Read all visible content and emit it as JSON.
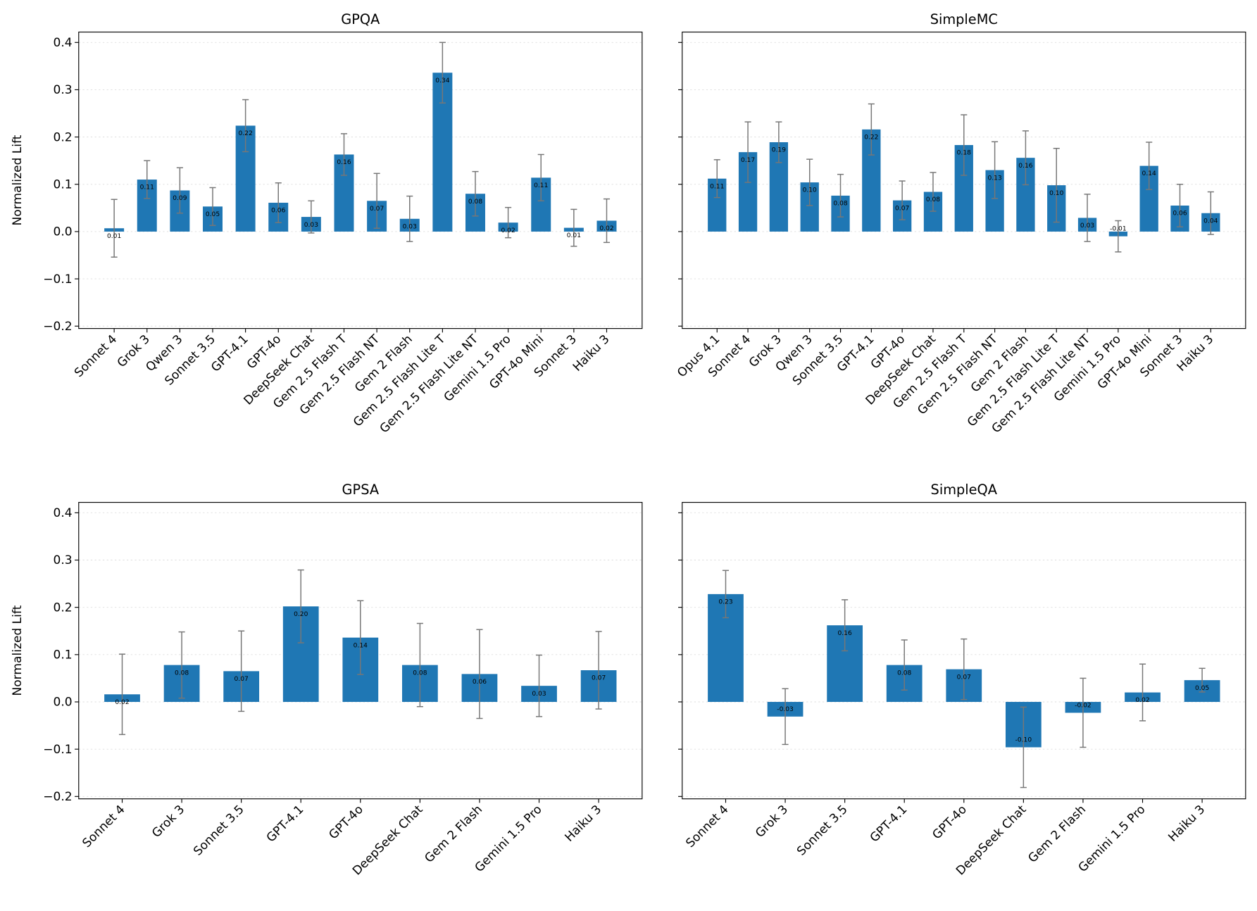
{
  "chart_data": [
    {
      "type": "bar",
      "title": "GPQA",
      "ylabel": "Normalized Lift",
      "color": "#1f77b4",
      "grid": true,
      "categories": [
        "Sonnet 4",
        "Grok 3",
        "Qwen 3",
        "Sonnet 3.5",
        "GPT-4.1",
        "GPT-4o",
        "DeepSeek Chat",
        "Gem 2.5 Flash T",
        "Gem 2.5 Flash NT",
        "Gem 2 Flash",
        "Gem 2.5 Flash Lite T",
        "Gem 2.5 Flash Lite NT",
        "Gemini 1.5 Pro",
        "GPT-4o Mini",
        "Sonnet 3",
        "Haiku 3"
      ],
      "values": [
        0.007,
        0.11,
        0.087,
        0.053,
        0.224,
        0.061,
        0.031,
        0.163,
        0.065,
        0.027,
        0.336,
        0.08,
        0.019,
        0.114,
        0.008,
        0.023
      ],
      "errors": [
        0.061,
        0.04,
        0.048,
        0.04,
        0.055,
        0.042,
        0.034,
        0.044,
        0.058,
        0.048,
        0.064,
        0.047,
        0.032,
        0.049,
        0.039,
        0.046
      ],
      "value_labels": [
        "0.01",
        "0.11",
        "0.09",
        "0.05",
        "0.22",
        "0.06",
        "0.03",
        "0.16",
        "0.07",
        "0.03",
        "0.34",
        "0.08",
        "0.02",
        "0.11",
        "0.01",
        "0.02"
      ],
      "ylim": [
        -0.205,
        0.422
      ],
      "yticks": [
        {
          "value": -0.2,
          "label": "−0.2"
        },
        {
          "value": -0.1,
          "label": "−0.1"
        },
        {
          "value": 0,
          "label": "0.0"
        },
        0.1,
        0.2,
        0.3,
        0.4
      ]
    },
    {
      "type": "bar",
      "title": "SimpleMC",
      "color": "#1f77b4",
      "grid": true,
      "categories": [
        "Opus 4.1",
        "Sonnet 4",
        "Grok 3",
        "Qwen 3",
        "Sonnet 3.5",
        "GPT-4.1",
        "GPT-4o",
        "DeepSeek Chat",
        "Gem 2.5 Flash T",
        "Gem 2.5 Flash NT",
        "Gem 2 Flash",
        "Gem 2.5 Flash Lite T",
        "Gem 2.5 Flash Lite NT",
        "Gemini 1.5 Pro",
        "GPT-4o Mini",
        "Sonnet 3",
        "Haiku 3"
      ],
      "values": [
        0.112,
        0.168,
        0.189,
        0.104,
        0.076,
        0.216,
        0.066,
        0.084,
        0.183,
        0.13,
        0.156,
        0.098,
        0.029,
        -0.01,
        0.139,
        0.055,
        0.039
      ],
      "errors": [
        0.04,
        0.064,
        0.043,
        0.049,
        0.045,
        0.054,
        0.041,
        0.041,
        0.064,
        0.06,
        0.057,
        0.078,
        0.05,
        0.033,
        0.05,
        0.045,
        0.045
      ],
      "value_labels": [
        "0.11",
        "0.17",
        "0.19",
        "0.10",
        "0.08",
        "0.22",
        "0.07",
        "0.08",
        "0.18",
        "0.13",
        "0.16",
        "0.10",
        "0.03",
        "-0.01",
        "0.14",
        "0.06",
        "0.04"
      ],
      "ylim": [
        -0.205,
        0.422
      ],
      "yticks": [
        -0.2,
        -0.1,
        0,
        0.1,
        0.2,
        0.3,
        0.4
      ]
    },
    {
      "type": "bar",
      "title": "GPSA",
      "ylabel": "Normalized Lift",
      "color": "#1f77b4",
      "grid": true,
      "categories": [
        "Sonnet 4",
        "Grok 3",
        "Sonnet 3.5",
        "GPT-4.1",
        "GPT-4o",
        "DeepSeek Chat",
        "Gem 2 Flash",
        "Gemini 1.5 Pro",
        "Haiku 3"
      ],
      "values": [
        0.016,
        0.078,
        0.065,
        0.202,
        0.136,
        0.078,
        0.059,
        0.034,
        0.067
      ],
      "errors": [
        0.085,
        0.07,
        0.085,
        0.077,
        0.078,
        0.088,
        0.094,
        0.065,
        0.082
      ],
      "value_labels": [
        "0.02",
        "0.08",
        "0.07",
        "0.20",
        "0.14",
        "0.08",
        "0.06",
        "0.03",
        "0.07"
      ],
      "ylim": [
        -0.205,
        0.422
      ],
      "yticks": [
        {
          "value": -0.2,
          "label": "−0.2"
        },
        {
          "value": -0.1,
          "label": "−0.1"
        },
        {
          "value": 0,
          "label": "0.0"
        },
        0.1,
        0.2,
        0.3,
        0.4
      ]
    },
    {
      "type": "bar",
      "title": "SimpleQA",
      "color": "#1f77b4",
      "grid": true,
      "categories": [
        "Sonnet 4",
        "Grok 3",
        "Sonnet 3.5",
        "GPT-4.1",
        "GPT-4o",
        "DeepSeek Chat",
        "Gem 2 Flash",
        "Gemini 1.5 Pro",
        "Haiku 3"
      ],
      "values": [
        0.228,
        -0.031,
        0.162,
        0.078,
        0.069,
        -0.096,
        -0.023,
        0.02,
        0.046
      ],
      "errors": [
        0.05,
        0.059,
        0.054,
        0.053,
        0.064,
        0.085,
        0.073,
        0.06,
        0.025
      ],
      "value_labels": [
        "0.23",
        "-0.03",
        "0.16",
        "0.08",
        "0.07",
        "-0.10",
        "-0.02",
        "0.02",
        "0.05"
      ],
      "ylim": [
        -0.205,
        0.422
      ],
      "yticks": [
        -0.2,
        -0.1,
        0,
        0.1,
        0.2,
        0.3,
        0.4
      ]
    }
  ]
}
